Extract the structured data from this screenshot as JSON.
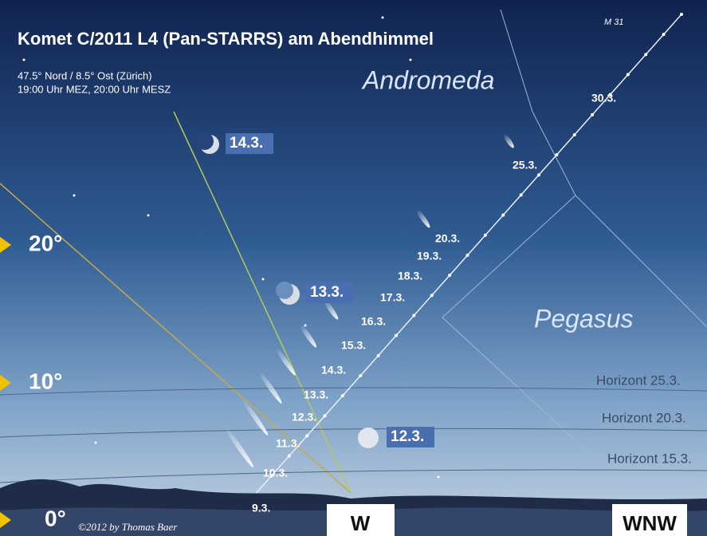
{
  "header": {
    "title": "Komet C/2011 L4 (Pan-STARRS) am Abendhimmel",
    "location": "47.5° Nord / 8.5° Ost (Zürich)",
    "time": "19:00 Uhr MEZ, 20:00 Uhr MESZ"
  },
  "constellations": [
    "Andromeda",
    "Pegasus"
  ],
  "deep_sky": "M 31",
  "moon_labels": [
    "14.3.",
    "13.3.",
    "12.3."
  ],
  "altitude_labels": [
    "20°",
    "10°",
    "0°"
  ],
  "comet_dates": [
    "30.3.",
    "25.3.",
    "20.3.",
    "19.3.",
    "18.3.",
    "17.3.",
    "16.3.",
    "15.3.",
    "14.3.",
    "13.3.",
    "12.3.",
    "11.3.",
    "10.3.",
    "9.3."
  ],
  "horizons": [
    "Horizont 25.3.",
    "Horizont 20.3.",
    "Horizont 15.3."
  ],
  "directions": [
    "W",
    "WNW"
  ],
  "copyright": "©2012 by Thomas Baer"
}
